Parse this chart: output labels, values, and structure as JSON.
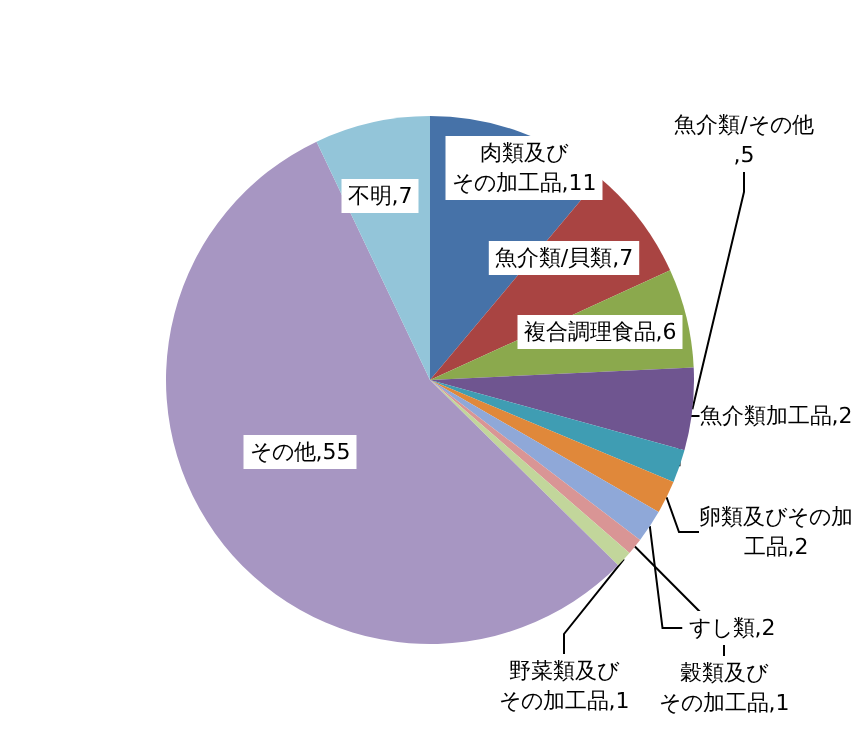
{
  "chart_data": {
    "type": "pie",
    "categories": [
      "肉類及びその加工品",
      "魚介類/貝類",
      "複合調理食品",
      "魚介類/その他",
      "魚介類加工品",
      "卵類及びその加工品",
      "すし類",
      "穀類及びその加工品",
      "野菜類及びその加工品",
      "その他",
      "不明"
    ],
    "values": [
      11,
      7,
      6,
      5,
      2,
      2,
      2,
      1,
      1,
      55,
      7
    ],
    "colors": [
      "#4672a8",
      "#a94442",
      "#8ba94d",
      "#6f5590",
      "#3f9db3",
      "#e0883a",
      "#8fa8d8",
      "#d99595",
      "#c2d69b",
      "#a796c2",
      "#93c5d9"
    ],
    "value_labels": [
      ",11",
      ",7",
      ",6",
      ",5",
      ",2",
      ",2",
      ",2",
      ",1",
      ",1",
      ",55",
      ",7"
    ],
    "legend": false
  }
}
